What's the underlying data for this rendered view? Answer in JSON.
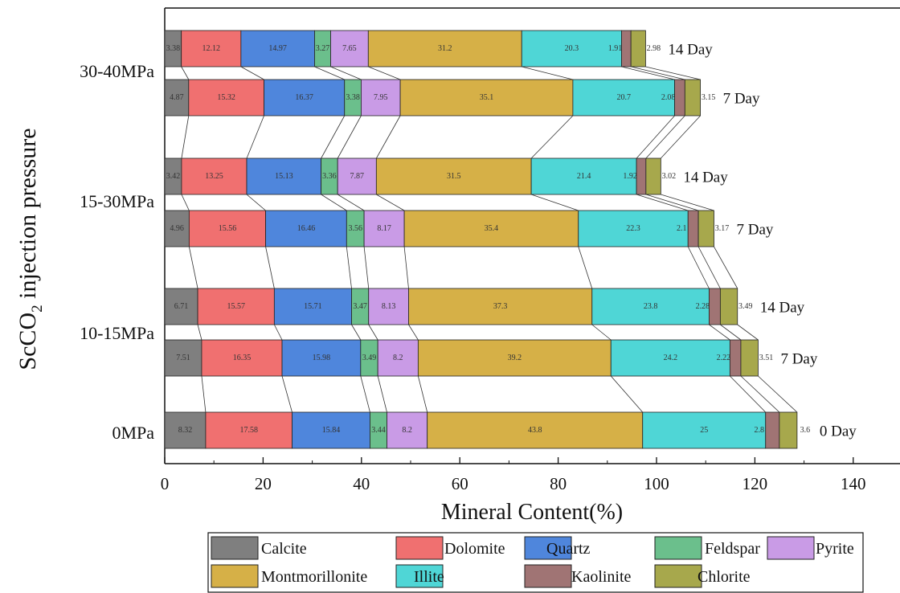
{
  "chart_data": {
    "type": "bar",
    "orientation": "horizontal",
    "stacked": true,
    "title": "",
    "xlabel": "Mineral Content(%)",
    "ylabel": "ScCO2 injection pressure",
    "ylabel_parts": [
      "ScCO",
      "2",
      " injection pressure"
    ],
    "xlim": [
      0,
      150
    ],
    "xticks": [
      0,
      20,
      40,
      60,
      80,
      100,
      120,
      140
    ],
    "groups": [
      {
        "label": "30-40MPa",
        "rows": [
          0,
          1
        ]
      },
      {
        "label": "15-30MPa",
        "rows": [
          2,
          3
        ]
      },
      {
        "label": "10-15MPa",
        "rows": [
          4,
          5
        ]
      },
      {
        "label": "0MPa",
        "rows": [
          6
        ]
      }
    ],
    "minerals": [
      "Calcite",
      "Dolomite",
      "Quartz",
      "Feldspar",
      "Pyrite",
      "Montmorillonite",
      "Illite",
      "Kaolinite",
      "Chlorite"
    ],
    "colors": [
      "#7f7f7f",
      "#f07070",
      "#4f86dc",
      "#6bbf8c",
      "#c99be6",
      "#d6b047",
      "#4fd6d6",
      "#a07474",
      "#a7a84c"
    ],
    "rows": [
      {
        "group": "30-40MPa",
        "day": "14 Day",
        "values": [
          3.38,
          12.12,
          14.97,
          3.27,
          7.65,
          31.2,
          20.3,
          1.91,
          2.98
        ]
      },
      {
        "group": "30-40MPa",
        "day": "7 Day",
        "values": [
          4.87,
          15.32,
          16.37,
          3.38,
          7.95,
          35.1,
          20.7,
          2.08,
          3.15
        ]
      },
      {
        "group": "15-30MPa",
        "day": "14 Day",
        "values": [
          3.42,
          13.25,
          15.13,
          3.36,
          7.87,
          31.5,
          21.4,
          1.92,
          3.02
        ]
      },
      {
        "group": "15-30MPa",
        "day": "7 Day",
        "values": [
          4.96,
          15.56,
          16.46,
          3.56,
          8.17,
          35.4,
          22.3,
          2.1,
          3.17
        ]
      },
      {
        "group": "10-15MPa",
        "day": "14 Day",
        "values": [
          6.71,
          15.57,
          15.71,
          3.47,
          8.13,
          37.3,
          23.8,
          2.28,
          3.49
        ]
      },
      {
        "group": "10-15MPa",
        "day": "7 Day",
        "values": [
          7.51,
          16.35,
          15.98,
          3.49,
          8.2,
          39.2,
          24.2,
          2.22,
          3.51
        ]
      },
      {
        "group": "0MPa",
        "day": "0 Day",
        "values": [
          8.32,
          17.58,
          15.84,
          3.44,
          8.2,
          43.8,
          25,
          2.8,
          3.6
        ]
      }
    ],
    "legend": {
      "position": "bottom",
      "entries": [
        "Calcite",
        "Dolomite",
        "Quartz",
        "Feldspar",
        "Pyrite",
        "Montmorillonite",
        "Illite",
        "Kaolinite",
        "Chlorite"
      ]
    }
  }
}
